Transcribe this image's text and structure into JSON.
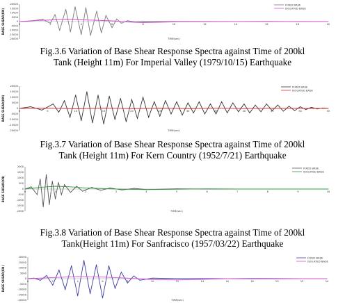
{
  "figures": [
    {
      "caption_line1": "Fig.3.6 Variation of Base Shear Response Spectra against Time of 200kl",
      "caption_line2": "Tank (Height 11m) For Imperial Valley (1979/10/15) Earthquake"
    },
    {
      "caption_line1": "Fig.3.7    Variation of Base Shear Response Spectra against Time of 200kl",
      "caption_line2": "Tank (Height 11m) For Kern Country (1952/7/21) Earthquake"
    },
    {
      "caption_line1": "Fig.3.8 Variation of Base Shear Response Spectra against Time of 200kl",
      "caption_line2": "Tank(Height 11m) For Sanfracisco (1957/03/22) Earthquake"
    }
  ],
  "chart_data": [
    {
      "type": "line",
      "xlabel": "TIME(sec)",
      "ylabel": "BASE SHEAR(KN)",
      "x_ticks": [
        "0",
        "2",
        "4",
        "6",
        "8",
        "10",
        "12",
        "14",
        "16",
        "18",
        "20"
      ],
      "y_ticks": [
        "20000",
        "15000",
        "10000",
        "5000",
        "0",
        "-5000",
        "-10000",
        "-15000",
        "-20000"
      ],
      "ylim": [
        -20000,
        20000
      ],
      "xlim": [
        0,
        20
      ],
      "legend_position": "top-right",
      "colors": {
        "fixed": "#7a7a7a",
        "isolated": "#d94fd6"
      },
      "series": [
        {
          "name": "FIXED BASE",
          "x": [
            0,
            0.5,
            1,
            1.5,
            2,
            2.3,
            2.6,
            3,
            3.3,
            3.6,
            4,
            4.3,
            4.6,
            5,
            5.3,
            5.6,
            6,
            6.3,
            6.6,
            7,
            7.5,
            8,
            9,
            10,
            12,
            14,
            16,
            18,
            20
          ],
          "y": [
            0,
            300,
            1200,
            2500,
            -2000,
            8000,
            -10000,
            14000,
            -12000,
            17000,
            -15000,
            16000,
            -16000,
            12000,
            -13000,
            7000,
            -7000,
            3000,
            -2000,
            1000,
            -500,
            300,
            0,
            0,
            0,
            0,
            0,
            0,
            0
          ]
        },
        {
          "name": "ISOLATED BASE",
          "x": [
            0,
            1,
            2,
            3,
            4,
            5,
            6,
            7,
            8,
            9,
            10,
            12,
            14,
            16,
            18,
            20
          ],
          "y": [
            0,
            1200,
            1800,
            2500,
            2000,
            1500,
            800,
            -500,
            -1200,
            -800,
            -400,
            -200,
            0,
            200,
            -100,
            0
          ]
        }
      ]
    },
    {
      "type": "line",
      "xlabel": "TIME(sec)",
      "ylabel": "BASE SHEAR(KN)",
      "x_ticks": [
        "0",
        "5",
        "10",
        "15",
        "20",
        "25",
        "30",
        "35",
        "40",
        "45",
        "50",
        "55"
      ],
      "y_ticks": [
        "20000",
        "15000",
        "10000",
        "5000",
        "0",
        "-5000",
        "-10000",
        "-15000",
        "-20000"
      ],
      "ylim": [
        -20000,
        20000
      ],
      "xlim": [
        0,
        55
      ],
      "legend_position": "top-right",
      "colors": {
        "fixed": "#333333",
        "isolated": "#d9322b"
      },
      "series": [
        {
          "name": "FIXED BASE",
          "x": [
            0,
            2,
            4,
            6,
            7,
            8,
            9,
            10,
            11,
            12,
            13,
            14,
            15,
            16,
            17,
            18,
            19,
            20,
            21,
            22,
            23,
            24,
            25,
            26,
            27,
            28,
            29,
            30,
            31,
            32,
            33,
            34,
            35,
            36,
            37,
            38,
            39,
            40,
            41,
            42,
            43,
            44,
            45,
            46,
            47,
            48,
            49,
            50,
            51,
            52,
            53,
            54,
            55
          ],
          "y": [
            0,
            1500,
            -1500,
            4000,
            -3500,
            7000,
            -8000,
            12000,
            -11000,
            15000,
            -13000,
            12000,
            -14000,
            11000,
            -10000,
            9000,
            -12000,
            8000,
            -9000,
            10000,
            -8000,
            6000,
            -7000,
            7000,
            -5000,
            6000,
            -6000,
            5000,
            -4000,
            6000,
            -5000,
            4000,
            -5000,
            6000,
            -4000,
            5000,
            -3000,
            4000,
            -4000,
            3000,
            -3000,
            4000,
            -2000,
            3000,
            -2500,
            2000,
            -2000,
            1500,
            -1000,
            1000,
            -500,
            300,
            0
          ]
        },
        {
          "name": "ISOLATED BASE",
          "x": [
            0,
            5,
            10,
            15,
            20,
            25,
            30,
            35,
            40,
            45,
            50,
            55
          ],
          "y": [
            0,
            200,
            -300,
            200,
            -200,
            150,
            -150,
            100,
            -100,
            80,
            -50,
            0
          ]
        }
      ]
    },
    {
      "type": "line",
      "xlabel": "TIME(sec)",
      "ylabel": "BASE SHEAR(KN)",
      "x_ticks": [
        "0",
        "1",
        "2",
        "3",
        "4",
        "5",
        "6",
        "7",
        "8",
        "9",
        "10"
      ],
      "y_ticks": [
        "2000",
        "1500",
        "1000",
        "500",
        "0",
        "-500",
        "-1000",
        "-1500",
        "-2000"
      ],
      "ylim": [
        -2000,
        2000
      ],
      "xlim": [
        0,
        10
      ],
      "legend_position": "top-right",
      "colors": {
        "fixed": "#555555",
        "isolated": "#2f9a3a"
      },
      "series": [
        {
          "name": "FIXED BASE",
          "x": [
            0,
            0.2,
            0.4,
            0.5,
            0.6,
            0.7,
            0.8,
            0.9,
            1.0,
            1.1,
            1.2,
            1.3,
            1.5,
            1.7,
            1.9,
            2.2,
            2.5,
            2.8,
            3.2,
            3.6,
            4,
            5,
            6,
            7,
            8,
            9,
            10
          ],
          "y": [
            0,
            200,
            -500,
            900,
            -1600,
            1300,
            -1400,
            700,
            -900,
            600,
            -500,
            400,
            -300,
            250,
            -200,
            150,
            -120,
            100,
            -80,
            60,
            -40,
            20,
            0,
            0,
            0,
            0,
            0
          ]
        },
        {
          "name": "ISOLATED BASE",
          "x": [
            0,
            0.5,
            1,
            1.5,
            2,
            2.5,
            3,
            4,
            5,
            6,
            7,
            8,
            9,
            10
          ],
          "y": [
            0,
            150,
            250,
            200,
            100,
            50,
            0,
            -50,
            -20,
            20,
            0,
            0,
            0,
            0
          ]
        }
      ]
    },
    {
      "type": "line",
      "xlabel": "TIME(sec)",
      "ylabel": "BASE SHEAR(KN)",
      "x_ticks": [
        "0",
        "2",
        "4",
        "6",
        "8",
        "10",
        "12",
        "14",
        "16",
        "18",
        "20",
        "22",
        "24"
      ],
      "y_ticks": [
        "20000",
        "15000",
        "10000",
        "5000",
        "0",
        "-5000",
        "-10000",
        "-15000",
        "-20000"
      ],
      "ylim": [
        -20000,
        20000
      ],
      "xlim": [
        0,
        24
      ],
      "legend_position": "top-right",
      "colors": {
        "fixed": "#3a3aa0",
        "isolated": "#d94fd6"
      },
      "series": [
        {
          "name": "FIXED BASE",
          "x": [
            0,
            0.5,
            1,
            1.5,
            2,
            2.5,
            3,
            3.5,
            4,
            4.5,
            5,
            5.5,
            6,
            6.5,
            7,
            7.5,
            8,
            8.5,
            9,
            10,
            12,
            14,
            16,
            18,
            20,
            22,
            24
          ],
          "y": [
            0,
            500,
            -1500,
            3000,
            -6000,
            8000,
            -10000,
            12000,
            -16000,
            17000,
            -14000,
            13000,
            -18000,
            12000,
            -9000,
            6000,
            -4000,
            2500,
            -1500,
            500,
            0,
            0,
            0,
            0,
            0,
            0,
            0
          ]
        },
        {
          "name": "ISOLATED BASE",
          "x": [
            0,
            2,
            4,
            6,
            8,
            10,
            12,
            14,
            16,
            18,
            20,
            22,
            24
          ],
          "y": [
            0,
            1000,
            2000,
            1500,
            500,
            -800,
            -1200,
            -600,
            0,
            300,
            200,
            0,
            0
          ]
        }
      ]
    }
  ]
}
